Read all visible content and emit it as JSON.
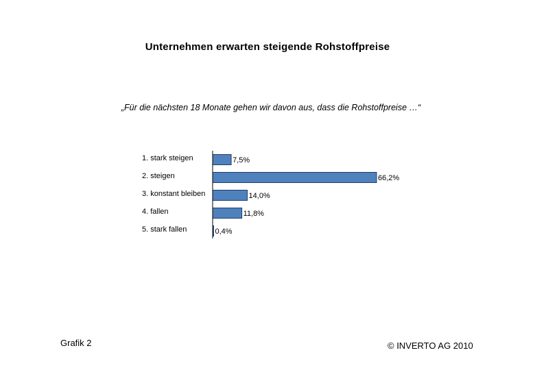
{
  "chart_data": {
    "type": "bar",
    "orientation": "horizontal",
    "title": "Unternehmen erwarten steigende Rohstoffpreise",
    "subtitle": "„Für die nächsten 18 Monate gehen wir davon aus, dass die Rohstoffpreise …“",
    "categories": [
      "1. stark steigen",
      "2. steigen",
      "3. konstant bleiben",
      "4. fallen",
      "5. stark fallen"
    ],
    "values": [
      7.5,
      66.2,
      14.0,
      11.8,
      0.4
    ],
    "data_labels": [
      "7,5%",
      "66,2%",
      "14,0%",
      "11,8%",
      "0,4%"
    ],
    "xlim": [
      0,
      66.2
    ],
    "grid": false,
    "bar_color": "#4f81bd",
    "bar_border_color": "#1f3d6a"
  },
  "footer": {
    "left": "Grafik 2",
    "right": "©  INVERTO AG 2010"
  }
}
